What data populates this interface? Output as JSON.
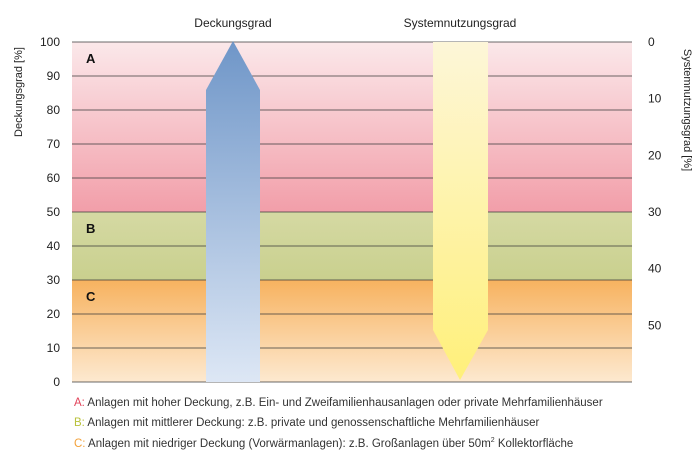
{
  "chart_data": {
    "type": "area",
    "top_labels": {
      "left_arrow": "Deckungsgrad",
      "right_arrow": "Systemnutzungsgrad"
    },
    "ylabel_left": "Deckungsgrad [%]",
    "ylabel_right": "Systemnutzungsgrad [%]",
    "ylim_left": [
      0,
      100
    ],
    "yticks_left": [
      "0",
      "10",
      "20",
      "30",
      "40",
      "50",
      "60",
      "70",
      "80",
      "90",
      "100"
    ],
    "ylim_right": [
      0,
      60
    ],
    "ylim_right_inverted": true,
    "yticks_right": [
      "0",
      "10",
      "20",
      "30",
      "40",
      "50"
    ],
    "yticks_right_values": [
      0,
      10,
      20,
      30,
      40,
      50
    ],
    "bands": [
      {
        "label": "A",
        "from": 50,
        "to": 100,
        "color_top": "#fbe8ea",
        "color_bottom": "#f29ea9"
      },
      {
        "label": "B",
        "from": 30,
        "to": 50,
        "color_top": "#d5d9a3",
        "color_bottom": "#c9d08e"
      },
      {
        "label": "C",
        "from": 0,
        "to": 30,
        "color_top": "#f7b25f",
        "color_bottom": "#fde9d0"
      }
    ],
    "arrows": [
      {
        "name": "Deckungsgrad",
        "direction": "up",
        "color_tip": "#6f96c8",
        "color_base": "#dde7f5"
      },
      {
        "name": "Systemnutzungsgrad",
        "direction": "down",
        "color_tip": "#fff07a",
        "color_base": "#fdf6d8"
      }
    ],
    "grid": true
  },
  "legend": [
    {
      "key": "A:",
      "text": " Anlagen mit hoher Deckung, z.B. Ein- und Zweifamilienhausanlagen oder private Mehrfamilienhäuser",
      "color": "#e2445b"
    },
    {
      "key": "B:",
      "text": " Anlagen mit mittlerer Deckung: z.B. private und genossenschaftliche Mehrfamilienhäuser",
      "color": "#b9c23c"
    },
    {
      "key": "C:",
      "text": " Anlagen mit niedriger Deckung (Vorwärmanlagen): z.B. Großanlagen über 50m",
      "sup": "2",
      "tail": " Kollektorfläche",
      "color": "#f3a13a"
    }
  ]
}
